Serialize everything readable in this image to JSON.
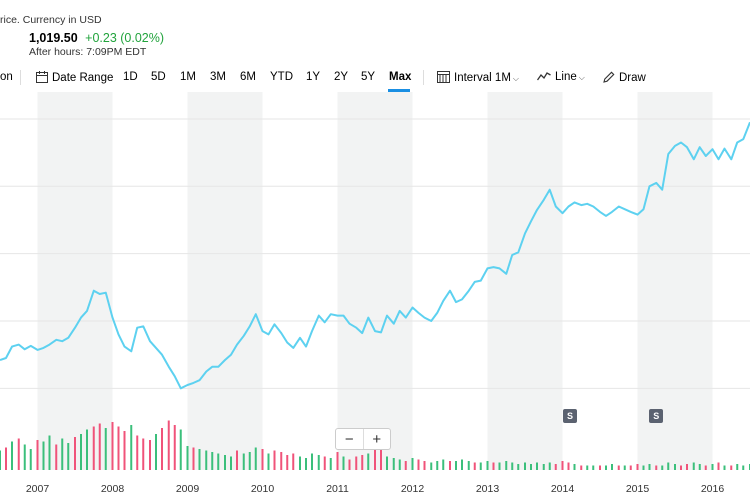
{
  "header": {
    "price_note": "rice. Currency in USD",
    "price": "1,019.50",
    "change": "+0.23 (0.02%)",
    "after_hours": "After hours: 7:09PM EDT"
  },
  "toolbar": {
    "partial_item": "on",
    "date_range": "Date Range",
    "ranges": [
      "1D",
      "5D",
      "1M",
      "3M",
      "6M",
      "YTD",
      "1Y",
      "2Y",
      "5Y",
      "Max"
    ],
    "active_range": "Max",
    "interval_label": "Interval",
    "interval_value": "1M",
    "chart_type": "Line",
    "draw": "Draw"
  },
  "events": [
    {
      "label": "S",
      "year": 2014.1
    },
    {
      "label": "S",
      "year": 2015.25
    }
  ],
  "zoom": {
    "minus": "−",
    "plus": "+"
  },
  "colors": {
    "line": "#5dd1f0",
    "volume_up": "#3bbf7b",
    "volume_down": "#f0537a",
    "shade": "#f2f3f3",
    "grid": "#e6e6e6",
    "active_tab": "#1a8fe3",
    "positive": "#21a33c"
  },
  "chart_data": {
    "type": "line",
    "x_start": 2006.5,
    "x_end": 2016.5,
    "x_ticks": [
      "2007",
      "2008",
      "2009",
      "2010",
      "2011",
      "2012",
      "2013",
      "2014",
      "2015",
      "2016"
    ],
    "price_series": [
      [
        2006.5,
        242
      ],
      [
        2006.58,
        245
      ],
      [
        2006.66,
        262
      ],
      [
        2006.75,
        265
      ],
      [
        2006.83,
        258
      ],
      [
        2006.91,
        263
      ],
      [
        2007.0,
        257
      ],
      [
        2007.08,
        260
      ],
      [
        2007.16,
        265
      ],
      [
        2007.25,
        272
      ],
      [
        2007.33,
        270
      ],
      [
        2007.41,
        275
      ],
      [
        2007.5,
        290
      ],
      [
        2007.58,
        305
      ],
      [
        2007.66,
        315
      ],
      [
        2007.75,
        345
      ],
      [
        2007.83,
        340
      ],
      [
        2007.91,
        342
      ],
      [
        2008.0,
        305
      ],
      [
        2008.08,
        280
      ],
      [
        2008.16,
        262
      ],
      [
        2008.25,
        255
      ],
      [
        2008.33,
        290
      ],
      [
        2008.41,
        292
      ],
      [
        2008.5,
        270
      ],
      [
        2008.58,
        260
      ],
      [
        2008.66,
        250
      ],
      [
        2008.75,
        232
      ],
      [
        2008.83,
        218
      ],
      [
        2008.91,
        200
      ],
      [
        2009.0,
        205
      ],
      [
        2009.08,
        208
      ],
      [
        2009.16,
        212
      ],
      [
        2009.25,
        225
      ],
      [
        2009.33,
        232
      ],
      [
        2009.41,
        232
      ],
      [
        2009.5,
        242
      ],
      [
        2009.58,
        250
      ],
      [
        2009.66,
        265
      ],
      [
        2009.75,
        278
      ],
      [
        2009.83,
        292
      ],
      [
        2009.91,
        310
      ],
      [
        2010.0,
        285
      ],
      [
        2010.08,
        280
      ],
      [
        2010.16,
        295
      ],
      [
        2010.25,
        282
      ],
      [
        2010.33,
        268
      ],
      [
        2010.41,
        260
      ],
      [
        2010.5,
        275
      ],
      [
        2010.58,
        262
      ],
      [
        2010.66,
        285
      ],
      [
        2010.75,
        308
      ],
      [
        2010.83,
        298
      ],
      [
        2010.91,
        310
      ],
      [
        2011.0,
        308
      ],
      [
        2011.08,
        308
      ],
      [
        2011.16,
        296
      ],
      [
        2011.25,
        290
      ],
      [
        2011.33,
        282
      ],
      [
        2011.41,
        305
      ],
      [
        2011.5,
        285
      ],
      [
        2011.58,
        283
      ],
      [
        2011.66,
        308
      ],
      [
        2011.75,
        296
      ],
      [
        2011.83,
        315
      ],
      [
        2011.91,
        305
      ],
      [
        2012.0,
        320
      ],
      [
        2012.08,
        312
      ],
      [
        2012.16,
        305
      ],
      [
        2012.25,
        300
      ],
      [
        2012.33,
        312
      ],
      [
        2012.41,
        330
      ],
      [
        2012.5,
        345
      ],
      [
        2012.58,
        328
      ],
      [
        2012.66,
        332
      ],
      [
        2012.75,
        345
      ],
      [
        2012.83,
        358
      ],
      [
        2012.91,
        360
      ],
      [
        2013.0,
        378
      ],
      [
        2013.08,
        380
      ],
      [
        2013.16,
        378
      ],
      [
        2013.25,
        370
      ],
      [
        2013.33,
        398
      ],
      [
        2013.41,
        402
      ],
      [
        2013.5,
        430
      ],
      [
        2013.58,
        448
      ],
      [
        2013.66,
        465
      ],
      [
        2013.75,
        480
      ],
      [
        2013.83,
        495
      ],
      [
        2013.91,
        470
      ],
      [
        2014.0,
        460
      ],
      [
        2014.08,
        470
      ],
      [
        2014.16,
        476
      ],
      [
        2014.25,
        472
      ],
      [
        2014.33,
        474
      ],
      [
        2014.41,
        470
      ],
      [
        2014.5,
        462
      ],
      [
        2014.58,
        456
      ],
      [
        2014.66,
        462
      ],
      [
        2014.75,
        470
      ],
      [
        2014.83,
        466
      ],
      [
        2014.91,
        462
      ],
      [
        2015.0,
        458
      ],
      [
        2015.08,
        466
      ],
      [
        2015.16,
        500
      ],
      [
        2015.25,
        505
      ],
      [
        2015.33,
        495
      ],
      [
        2015.41,
        548
      ],
      [
        2015.5,
        560
      ],
      [
        2015.58,
        565
      ],
      [
        2015.66,
        558
      ],
      [
        2015.75,
        540
      ],
      [
        2015.83,
        558
      ],
      [
        2015.91,
        545
      ],
      [
        2016.0,
        555
      ],
      [
        2016.08,
        540
      ],
      [
        2016.16,
        556
      ],
      [
        2016.25,
        540
      ],
      [
        2016.33,
        565
      ],
      [
        2016.41,
        570
      ],
      [
        2016.5,
        595
      ]
    ],
    "volume_series": [
      [
        2006.5,
        26,
        1
      ],
      [
        2006.58,
        30,
        0
      ],
      [
        2006.66,
        38,
        1
      ],
      [
        2006.75,
        42,
        0
      ],
      [
        2006.83,
        34,
        1
      ],
      [
        2006.91,
        28,
        1
      ],
      [
        2007.0,
        40,
        0
      ],
      [
        2007.08,
        38,
        1
      ],
      [
        2007.16,
        46,
        1
      ],
      [
        2007.25,
        34,
        0
      ],
      [
        2007.33,
        42,
        1
      ],
      [
        2007.41,
        36,
        1
      ],
      [
        2007.5,
        44,
        0
      ],
      [
        2007.58,
        48,
        1
      ],
      [
        2007.66,
        54,
        1
      ],
      [
        2007.75,
        58,
        0
      ],
      [
        2007.83,
        62,
        0
      ],
      [
        2007.91,
        56,
        1
      ],
      [
        2008.0,
        64,
        0
      ],
      [
        2008.08,
        58,
        0
      ],
      [
        2008.16,
        52,
        0
      ],
      [
        2008.25,
        60,
        1
      ],
      [
        2008.33,
        46,
        0
      ],
      [
        2008.41,
        42,
        0
      ],
      [
        2008.5,
        40,
        0
      ],
      [
        2008.58,
        48,
        1
      ],
      [
        2008.66,
        56,
        0
      ],
      [
        2008.75,
        66,
        0
      ],
      [
        2008.83,
        60,
        0
      ],
      [
        2008.91,
        54,
        1
      ],
      [
        2009.0,
        32,
        1
      ],
      [
        2009.08,
        30,
        0
      ],
      [
        2009.16,
        28,
        1
      ],
      [
        2009.25,
        26,
        1
      ],
      [
        2009.33,
        24,
        1
      ],
      [
        2009.41,
        22,
        1
      ],
      [
        2009.5,
        20,
        1
      ],
      [
        2009.58,
        18,
        1
      ],
      [
        2009.66,
        26,
        0
      ],
      [
        2009.75,
        22,
        1
      ],
      [
        2009.83,
        24,
        1
      ],
      [
        2009.91,
        30,
        1
      ],
      [
        2010.0,
        28,
        0
      ],
      [
        2010.08,
        22,
        1
      ],
      [
        2010.16,
        26,
        0
      ],
      [
        2010.25,
        24,
        0
      ],
      [
        2010.33,
        20,
        0
      ],
      [
        2010.41,
        22,
        0
      ],
      [
        2010.5,
        18,
        1
      ],
      [
        2010.58,
        16,
        1
      ],
      [
        2010.66,
        22,
        1
      ],
      [
        2010.75,
        20,
        1
      ],
      [
        2010.83,
        18,
        0
      ],
      [
        2010.91,
        16,
        1
      ],
      [
        2011.0,
        24,
        0
      ],
      [
        2011.08,
        18,
        1
      ],
      [
        2011.16,
        14,
        0
      ],
      [
        2011.25,
        18,
        0
      ],
      [
        2011.33,
        20,
        0
      ],
      [
        2011.41,
        22,
        1
      ],
      [
        2011.5,
        44,
        0
      ],
      [
        2011.58,
        30,
        0
      ],
      [
        2011.66,
        18,
        1
      ],
      [
        2011.75,
        16,
        1
      ],
      [
        2011.83,
        14,
        1
      ],
      [
        2011.91,
        12,
        0
      ],
      [
        2012.0,
        16,
        1
      ],
      [
        2012.08,
        14,
        0
      ],
      [
        2012.16,
        12,
        0
      ],
      [
        2012.25,
        10,
        1
      ],
      [
        2012.33,
        12,
        1
      ],
      [
        2012.41,
        14,
        1
      ],
      [
        2012.5,
        12,
        0
      ],
      [
        2012.58,
        12,
        1
      ],
      [
        2012.66,
        14,
        1
      ],
      [
        2012.75,
        12,
        1
      ],
      [
        2012.83,
        10,
        0
      ],
      [
        2012.91,
        10,
        1
      ],
      [
        2013.0,
        12,
        1
      ],
      [
        2013.08,
        10,
        0
      ],
      [
        2013.16,
        10,
        1
      ],
      [
        2013.25,
        12,
        1
      ],
      [
        2013.33,
        10,
        1
      ],
      [
        2013.41,
        8,
        1
      ],
      [
        2013.5,
        10,
        1
      ],
      [
        2013.58,
        8,
        1
      ],
      [
        2013.66,
        10,
        1
      ],
      [
        2013.75,
        8,
        1
      ],
      [
        2013.83,
        10,
        1
      ],
      [
        2013.91,
        8,
        0
      ],
      [
        2014.0,
        12,
        0
      ],
      [
        2014.08,
        10,
        0
      ],
      [
        2014.16,
        8,
        1
      ],
      [
        2014.25,
        6,
        0
      ],
      [
        2014.33,
        6,
        1
      ],
      [
        2014.41,
        6,
        1
      ],
      [
        2014.5,
        6,
        0
      ],
      [
        2014.58,
        6,
        1
      ],
      [
        2014.66,
        8,
        1
      ],
      [
        2014.75,
        6,
        0
      ],
      [
        2014.83,
        6,
        1
      ],
      [
        2014.91,
        6,
        0
      ],
      [
        2015.0,
        8,
        0
      ],
      [
        2015.08,
        6,
        1
      ],
      [
        2015.16,
        8,
        1
      ],
      [
        2015.25,
        6,
        0
      ],
      [
        2015.33,
        6,
        1
      ],
      [
        2015.41,
        10,
        1
      ],
      [
        2015.5,
        8,
        1
      ],
      [
        2015.58,
        6,
        0
      ],
      [
        2015.66,
        8,
        0
      ],
      [
        2015.75,
        10,
        1
      ],
      [
        2015.83,
        8,
        1
      ],
      [
        2015.91,
        6,
        0
      ],
      [
        2016.0,
        8,
        1
      ],
      [
        2016.08,
        10,
        0
      ],
      [
        2016.16,
        6,
        1
      ],
      [
        2016.25,
        6,
        0
      ],
      [
        2016.33,
        8,
        1
      ],
      [
        2016.41,
        6,
        1
      ],
      [
        2016.5,
        8,
        1
      ]
    ]
  }
}
